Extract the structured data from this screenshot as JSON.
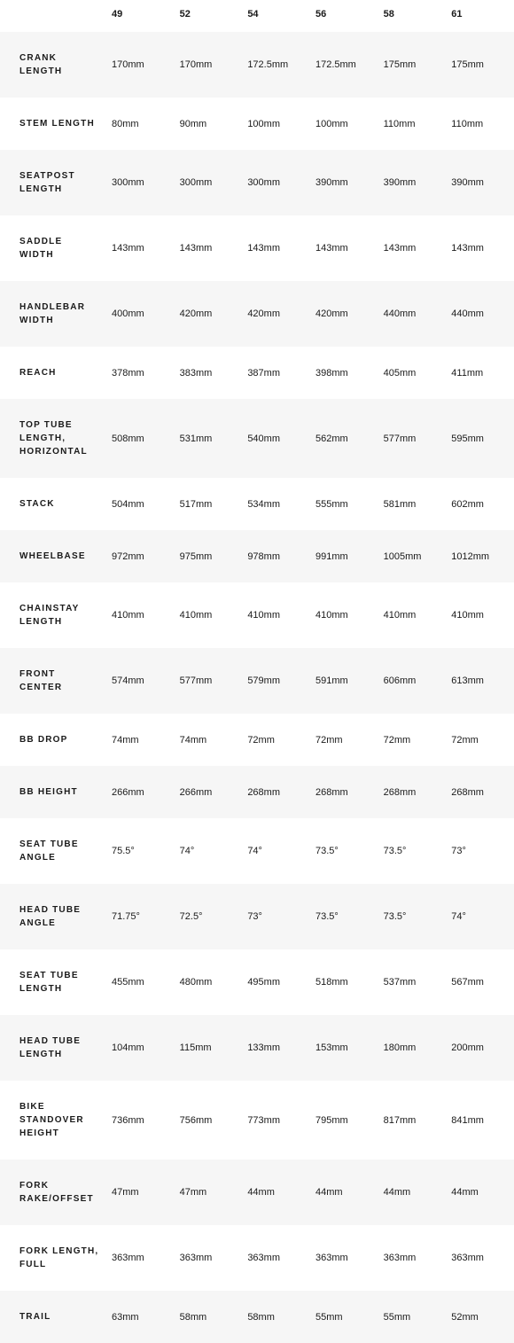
{
  "table": {
    "type": "table",
    "background_color": "#ffffff",
    "row_alt_color": "#f6f6f6",
    "text_color": "#1a1a1a",
    "header_fontsize": 11,
    "label_fontsize": 10,
    "cell_fontsize": 11,
    "label_letter_spacing": 1.2,
    "columns": [
      "49",
      "52",
      "54",
      "56",
      "58",
      "61"
    ],
    "label_col_width": 120,
    "rows": [
      {
        "label": "CRANK LENGTH",
        "cells": [
          "170mm",
          "170mm",
          "172.5mm",
          "172.5mm",
          "175mm",
          "175mm"
        ]
      },
      {
        "label": "STEM LENGTH",
        "cells": [
          "80mm",
          "90mm",
          "100mm",
          "100mm",
          "110mm",
          "110mm"
        ]
      },
      {
        "label": "SEATPOST LENGTH",
        "cells": [
          "300mm",
          "300mm",
          "300mm",
          "390mm",
          "390mm",
          "390mm"
        ]
      },
      {
        "label": "SADDLE WIDTH",
        "cells": [
          "143mm",
          "143mm",
          "143mm",
          "143mm",
          "143mm",
          "143mm"
        ]
      },
      {
        "label": "HANDLEBAR WIDTH",
        "cells": [
          "400mm",
          "420mm",
          "420mm",
          "420mm",
          "440mm",
          "440mm"
        ]
      },
      {
        "label": "REACH",
        "cells": [
          "378mm",
          "383mm",
          "387mm",
          "398mm",
          "405mm",
          "411mm"
        ]
      },
      {
        "label": "TOP TUBE LENGTH, HORIZONTAL",
        "cells": [
          "508mm",
          "531mm",
          "540mm",
          "562mm",
          "577mm",
          "595mm"
        ]
      },
      {
        "label": "STACK",
        "cells": [
          "504mm",
          "517mm",
          "534mm",
          "555mm",
          "581mm",
          "602mm"
        ]
      },
      {
        "label": "WHEELBASE",
        "cells": [
          "972mm",
          "975mm",
          "978mm",
          "991mm",
          "1005mm",
          "1012mm"
        ]
      },
      {
        "label": "CHAINSTAY LENGTH",
        "cells": [
          "410mm",
          "410mm",
          "410mm",
          "410mm",
          "410mm",
          "410mm"
        ]
      },
      {
        "label": "FRONT CENTER",
        "cells": [
          "574mm",
          "577mm",
          "579mm",
          "591mm",
          "606mm",
          "613mm"
        ]
      },
      {
        "label": "BB DROP",
        "cells": [
          "74mm",
          "74mm",
          "72mm",
          "72mm",
          "72mm",
          "72mm"
        ]
      },
      {
        "label": "BB HEIGHT",
        "cells": [
          "266mm",
          "266mm",
          "268mm",
          "268mm",
          "268mm",
          "268mm"
        ]
      },
      {
        "label": "SEAT TUBE ANGLE",
        "cells": [
          "75.5°",
          "74°",
          "74°",
          "73.5°",
          "73.5°",
          "73°"
        ]
      },
      {
        "label": "HEAD TUBE ANGLE",
        "cells": [
          "71.75°",
          "72.5°",
          "73°",
          "73.5°",
          "73.5°",
          "74°"
        ]
      },
      {
        "label": "SEAT TUBE LENGTH",
        "cells": [
          "455mm",
          "480mm",
          "495mm",
          "518mm",
          "537mm",
          "567mm"
        ]
      },
      {
        "label": "HEAD TUBE LENGTH",
        "cells": [
          "104mm",
          "115mm",
          "133mm",
          "153mm",
          "180mm",
          "200mm"
        ]
      },
      {
        "label": "BIKE STANDOVER HEIGHT",
        "cells": [
          "736mm",
          "756mm",
          "773mm",
          "795mm",
          "817mm",
          "841mm"
        ]
      },
      {
        "label": "FORK RAKE/OFFSET",
        "cells": [
          "47mm",
          "47mm",
          "44mm",
          "44mm",
          "44mm",
          "44mm"
        ]
      },
      {
        "label": "FORK LENGTH, FULL",
        "cells": [
          "363mm",
          "363mm",
          "363mm",
          "363mm",
          "363mm",
          "363mm"
        ]
      },
      {
        "label": "TRAIL",
        "cells": [
          "63mm",
          "58mm",
          "58mm",
          "55mm",
          "55mm",
          "52mm"
        ]
      }
    ]
  }
}
